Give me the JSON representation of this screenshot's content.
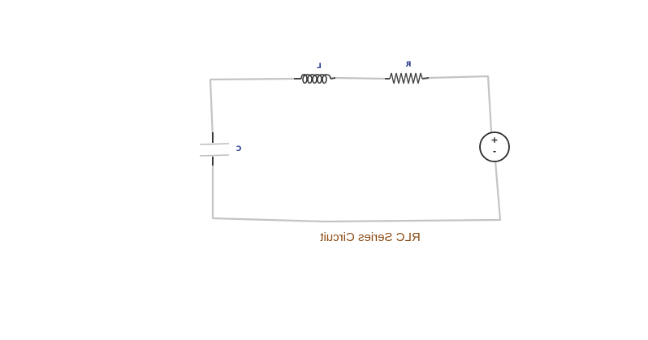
{
  "diagram": {
    "labels": {
      "inductor": "L",
      "resistor": "R",
      "capacitor": "C"
    },
    "source": {
      "plus": "+",
      "minus": "-"
    },
    "caption": "RLC Series Circuit",
    "colors": {
      "wire": "#c4c4c4",
      "component_label": "#2e3f8f",
      "caption": "#8a4a12"
    }
  }
}
